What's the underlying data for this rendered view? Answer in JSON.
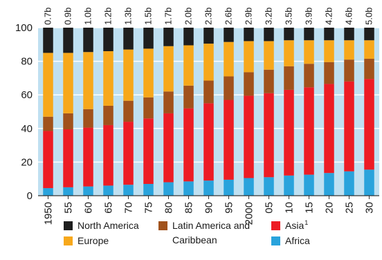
{
  "chart_data": {
    "type": "bar",
    "stacked": true,
    "categories": [
      "1950",
      "55",
      "60",
      "65",
      "70",
      "75",
      "80",
      "85",
      "90",
      "95",
      "2000",
      "05",
      "10",
      "15",
      "20",
      "25",
      "30"
    ],
    "bar_top_labels": [
      "0.7b",
      "0.9b",
      "1.0b",
      "1.2b",
      "1.3b",
      "1.5b",
      "1.7b",
      "2.0b",
      "2.3b",
      "2.6b",
      "2.9b",
      "3.2b",
      "3.5b",
      "3.9b",
      "4.2b",
      "4.6b",
      "5.0b"
    ],
    "ylim": [
      0,
      100
    ],
    "yticks": [
      0,
      20,
      40,
      60,
      80,
      100
    ],
    "grid": true,
    "background_color": "#bfe0f1",
    "gridline_color": "#ffffff",
    "series": [
      {
        "name": "Africa",
        "color": "#29a3dc",
        "values": [
          4.5,
          5,
          5.5,
          6,
          6.5,
          7,
          8,
          8.5,
          9,
          9.5,
          10.5,
          11,
          12,
          12.5,
          13.5,
          14.5,
          15.5
        ]
      },
      {
        "name": "Asia",
        "color": "#ed1c24",
        "values": [
          34,
          34.5,
          35,
          36,
          37.5,
          39,
          41,
          43.5,
          46,
          47.5,
          49,
          50,
          51,
          52,
          53,
          53.5,
          54
        ]
      },
      {
        "name": "Latin America and Caribbean",
        "color": "#a1521c",
        "values": [
          8.5,
          9.5,
          11,
          11.5,
          12.5,
          12.5,
          13,
          13.5,
          13.5,
          14,
          14,
          14,
          14,
          14,
          13,
          13,
          12
        ]
      },
      {
        "name": "Europe",
        "color": "#f7a81b",
        "values": [
          38,
          36,
          34,
          32.5,
          30.5,
          29,
          27,
          24,
          22,
          20.5,
          18.5,
          17,
          15.5,
          14,
          13,
          11.5,
          11
        ]
      },
      {
        "name": "North America",
        "color": "#1e1e1e",
        "values": [
          15,
          15,
          14.5,
          14,
          13,
          12.5,
          11,
          10.5,
          9.5,
          8.5,
          8,
          8,
          7.5,
          7.5,
          7.5,
          7.5,
          7.5
        ]
      }
    ],
    "legend": {
      "placement": "bottom",
      "items": [
        {
          "label": "North America",
          "color": "#1e1e1e",
          "sup": ""
        },
        {
          "label": "Latin America and",
          "label2": "Caribbean",
          "color": "#a1521c",
          "sup": ""
        },
        {
          "label": "Asia",
          "color": "#ed1c24",
          "sup": "1"
        },
        {
          "label": "Europe",
          "color": "#f7a81b",
          "sup": ""
        },
        {
          "label": "Africa",
          "color": "#29a3dc",
          "sup": ""
        }
      ]
    }
  }
}
